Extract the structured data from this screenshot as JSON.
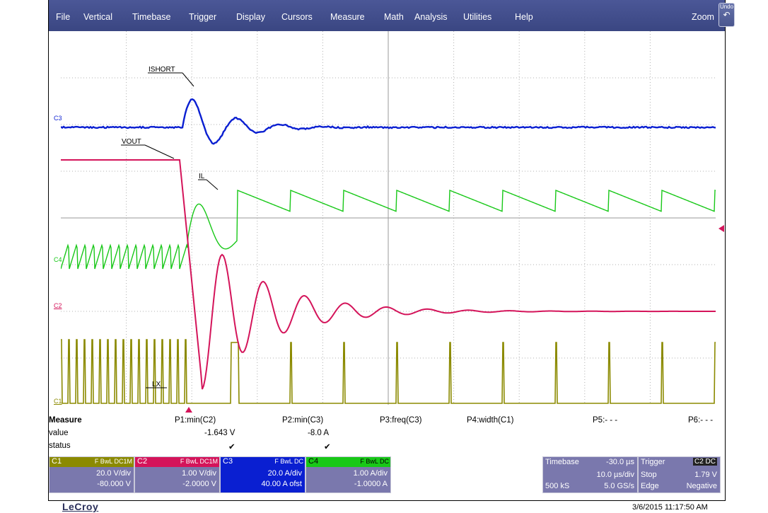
{
  "menu": {
    "items": [
      "File",
      "Vertical",
      "Timebase",
      "Trigger",
      "Display",
      "Cursors",
      "Measure",
      "Math",
      "Analysis",
      "Utilities",
      "Help"
    ],
    "zoom_label": "Zoom",
    "undo_label": "Undo",
    "undo_icon": "undo-arrow-icon"
  },
  "traces": {
    "c3_label": "C3",
    "c4_label": "C4",
    "c2_label": "C2",
    "c1_label": "C1",
    "annotations": [
      "ISHORT",
      "VOUT",
      "IL",
      "LX"
    ],
    "colors": {
      "C1": "#8b8a00",
      "C2": "#d4145a",
      "C3": "#0a1fd1",
      "C4": "#18c818"
    }
  },
  "measure": {
    "title": "Measure",
    "row_value": "value",
    "row_status": "status",
    "params": [
      {
        "name": "P1:min(C2)",
        "value": "-1.643 V",
        "status": "✔"
      },
      {
        "name": "P2:min(C3)",
        "value": "-8.0 A",
        "status": "✔"
      },
      {
        "name": "P3:freq(C3)",
        "value": "",
        "status": ""
      },
      {
        "name": "P4:width(C1)",
        "value": "",
        "status": ""
      },
      {
        "name": "P5:- - -",
        "value": "",
        "status": ""
      },
      {
        "name": "P6:- - -",
        "value": "",
        "status": ""
      }
    ]
  },
  "channels": [
    {
      "tag": "C1",
      "flags": "F BwL DC1M",
      "vdiv": "20.0 V/div",
      "offset": "-80.000 V",
      "color": "#7a78ad",
      "hdr": "#8b8a00"
    },
    {
      "tag": "C2",
      "flags": "F BwL DC1M",
      "vdiv": "1.00 V/div",
      "offset": "-2.0000 V",
      "color": "#7a78ad",
      "hdr": "#d4145a"
    },
    {
      "tag": "C3",
      "flags": "F BwL DC",
      "vdiv": "20.0 A/div",
      "offset": "40.00 A ofst",
      "color": "#0a1fd1",
      "hdr": "#0a1fd1"
    },
    {
      "tag": "C4",
      "flags": "F BwL DC",
      "vdiv": "1.00 A/div",
      "offset": "-1.0000 A",
      "color": "#7a78ad",
      "hdr": "#18c818"
    }
  ],
  "timebase": {
    "label": "Timebase",
    "delay": "-30.0 µs",
    "tdiv": "10.0 µs/div",
    "samples": "500 kS",
    "rate": "5.0 GS/s"
  },
  "trigger": {
    "label": "Trigger",
    "source": "C2 DC",
    "mode": "Stop",
    "level": "1.79 V",
    "type": "Edge",
    "slope": "Negative"
  },
  "footer": {
    "brand": "LeCroy",
    "timestamp": "3/6/2015 11:17:50 AM"
  }
}
